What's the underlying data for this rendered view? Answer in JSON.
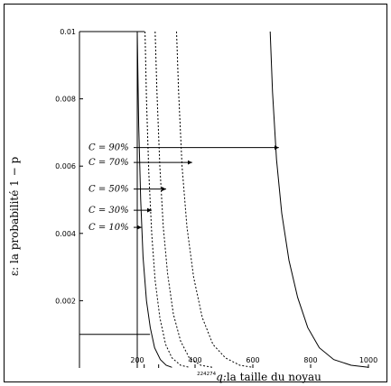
{
  "chart_data": {
    "type": "line",
    "xlabel_prefix": "q:",
    "xlabel": "la taille du noyau",
    "ylabel": "ε: la probabilité 1 − p",
    "xlim": [
      0,
      1000
    ],
    "ylim": [
      0,
      0.01
    ],
    "xticks": [
      200,
      400,
      600,
      800,
      1000
    ],
    "yticks": [
      0.002,
      0.004,
      0.006,
      0.008,
      0.01
    ],
    "ytick_labels": [
      "0.002",
      "0.004",
      "0.006",
      "0.008",
      "0.01"
    ],
    "special_ticks": [
      "224",
      "274"
    ],
    "special_tick_values": [
      224,
      274
    ],
    "threshold_epsilon": 0.001,
    "vertical_ref_x": 200,
    "series": [
      {
        "name": "C = 10%",
        "label_y": 0.00418,
        "arrow_to_x": 215,
        "style": "solid",
        "points": [
          [
            200,
            0.01
          ],
          [
            205,
            0.0072
          ],
          [
            212,
            0.005
          ],
          [
            220,
            0.0033
          ],
          [
            232,
            0.002
          ],
          [
            245,
            0.0012
          ],
          [
            260,
            0.0006
          ],
          [
            280,
            0.00025
          ],
          [
            300,
            8e-05
          ],
          [
            320,
            2e-05
          ]
        ]
      },
      {
        "name": "C = 30%",
        "label_y": 0.00469,
        "arrow_to_x": 250,
        "style": "dashed",
        "points": [
          [
            227,
            0.01
          ],
          [
            232,
            0.008
          ],
          [
            240,
            0.0058
          ],
          [
            250,
            0.004
          ],
          [
            262,
            0.0026
          ],
          [
            278,
            0.0015
          ],
          [
            298,
            0.0007
          ],
          [
            320,
            0.0003
          ],
          [
            350,
            8e-05
          ],
          [
            380,
            2e-05
          ]
        ]
      },
      {
        "name": "C = 50%",
        "label_y": 0.00532,
        "arrow_to_x": 300,
        "style": "dashed",
        "points": [
          [
            262,
            0.01
          ],
          [
            268,
            0.0082
          ],
          [
            278,
            0.006
          ],
          [
            290,
            0.0042
          ],
          [
            305,
            0.0028
          ],
          [
            325,
            0.0016
          ],
          [
            350,
            0.0008
          ],
          [
            380,
            0.0003
          ],
          [
            420,
            8e-05
          ],
          [
            460,
            2e-05
          ]
        ]
      },
      {
        "name": "C = 70%",
        "label_y": 0.00611,
        "arrow_to_x": 390,
        "style": "dashed",
        "points": [
          [
            336,
            0.01
          ],
          [
            343,
            0.0082
          ],
          [
            355,
            0.006
          ],
          [
            372,
            0.0042
          ],
          [
            395,
            0.0027
          ],
          [
            425,
            0.0015
          ],
          [
            462,
            0.0007
          ],
          [
            505,
            0.0003
          ],
          [
            555,
            8e-05
          ],
          [
            600,
            2e-05
          ]
        ]
      },
      {
        "name": "C = 90%",
        "label_y": 0.00655,
        "arrow_to_x": 690,
        "style": "solid",
        "points": [
          [
            660,
            0.01
          ],
          [
            668,
            0.0082
          ],
          [
            682,
            0.0062
          ],
          [
            700,
            0.0046
          ],
          [
            725,
            0.0032
          ],
          [
            755,
            0.0021
          ],
          [
            790,
            0.0012
          ],
          [
            830,
            0.0006
          ],
          [
            880,
            0.00025
          ],
          [
            940,
            8e-05
          ],
          [
            1000,
            2e-05
          ]
        ]
      }
    ]
  }
}
